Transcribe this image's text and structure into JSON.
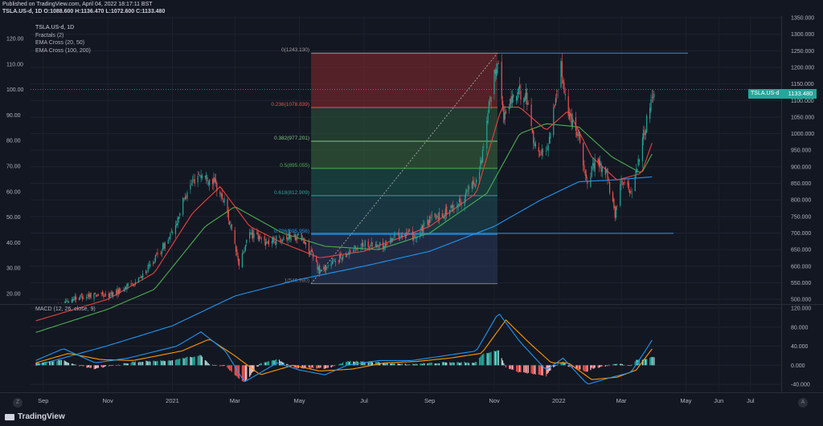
{
  "header": {
    "published": "Published on TradingView.com, April 04, 2022 18:17:11 BST",
    "ohlc": "TSLA.US-d, 1D  O:1088.600  H:1136.470  L:1072.600  C:1133.480"
  },
  "legend": {
    "symbol": "TSLA.US-d, 1D",
    "items": [
      "Fractals (2)",
      "EMA Cross (20, 50)",
      "EMA Cross (100, 200)"
    ]
  },
  "macd_legend": "MACD (12, 26, close, 9)",
  "price_tag": {
    "symbol": "TSLA.US-d",
    "value": "1133.480"
  },
  "brand": "TradingView",
  "axis_buttons": {
    "left": "Z",
    "right": "A"
  },
  "colors": {
    "background": "#131722",
    "up": "#26a69a",
    "down": "#ef5350",
    "ema_fast": "#e8433f",
    "ema_slow": "#4caf50",
    "ema_long": "#2196f3",
    "level_line": "#2962ff"
  },
  "chart_data": {
    "type": "candlestick",
    "symbol": "TSLA.US-d",
    "timeframe": "1D",
    "x_tick_labels": [
      "Sep",
      "Nov",
      "2021",
      "Mar",
      "May",
      "Jul",
      "Sep",
      "Nov",
      "2022",
      "Mar",
      "May",
      "Jun",
      "Jul"
    ],
    "y_right_ticks": [
      "1350.000",
      "1300.000",
      "1250.000",
      "1200.000",
      "1150.000",
      "1100.000",
      "1050.000",
      "1000.000",
      "950.000",
      "900.000",
      "850.000",
      "800.000",
      "750.000",
      "700.000",
      "650.000",
      "600.000",
      "550.000",
      "500.000"
    ],
    "y_left_ticks": [
      "120.00",
      "110.00",
      "100.00",
      "90.00",
      "80.00",
      "70.00",
      "60.00",
      "50.00",
      "40.00",
      "30.00",
      "20.00"
    ],
    "y_right_range": [
      488,
      1355
    ],
    "macd_ticks": [
      "120.000",
      "80.000",
      "40.000",
      "0.000",
      "-40.000"
    ],
    "macd_range": [
      -55,
      125
    ],
    "fib_levels": [
      {
        "ratio": 0,
        "label": "0(1243.130)",
        "price": 1243.13
      },
      {
        "ratio": 0.236,
        "label": "0.236(1078.839)",
        "price": 1078.839
      },
      {
        "ratio": 0.382,
        "label": "0.382(977.201)",
        "price": 977.201
      },
      {
        "ratio": 0.5,
        "label": "0.5(895.055)",
        "price": 895.055
      },
      {
        "ratio": 0.618,
        "label": "0.618(812.909)",
        "price": 812.909
      },
      {
        "ratio": 0.786,
        "label": "0.786(695.956)",
        "price": 695.956
      },
      {
        "ratio": 1,
        "label": "1(546.980)",
        "price": 546.98
      }
    ],
    "horizontal_lines": [
      1243.13,
      699.0
    ],
    "last_close": 1133.48,
    "close_path": [
      [
        "2020-08-25",
        430
      ],
      [
        "2020-09-01",
        455
      ],
      [
        "2020-09-15",
        480
      ],
      [
        "2020-10-01",
        505
      ],
      [
        "2020-10-20",
        515
      ],
      [
        "2020-11-01",
        510
      ],
      [
        "2020-11-20",
        540
      ],
      [
        "2020-12-01",
        560
      ],
      [
        "2020-12-15",
        620
      ],
      [
        "2021-01-01",
        700
      ],
      [
        "2021-01-15",
        830
      ],
      [
        "2021-01-26",
        880
      ],
      [
        "2021-02-08",
        860
      ],
      [
        "2021-02-20",
        790
      ],
      [
        "2021-03-05",
        600
      ],
      [
        "2021-03-15",
        700
      ],
      [
        "2021-04-01",
        670
      ],
      [
        "2021-04-15",
        690
      ],
      [
        "2021-05-01",
        690
      ],
      [
        "2021-05-12",
        640
      ],
      [
        "2021-05-20",
        585
      ],
      [
        "2021-06-01",
        610
      ],
      [
        "2021-06-15",
        640
      ],
      [
        "2021-07-01",
        670
      ],
      [
        "2021-07-20",
        660
      ],
      [
        "2021-08-01",
        700
      ],
      [
        "2021-08-20",
        690
      ],
      [
        "2021-09-01",
        740
      ],
      [
        "2021-09-20",
        770
      ],
      [
        "2021-10-01",
        800
      ],
      [
        "2021-10-15",
        860
      ],
      [
        "2021-10-22",
        950
      ],
      [
        "2021-10-27",
        1080
      ],
      [
        "2021-11-04",
        1230
      ],
      [
        "2021-11-10",
        1050
      ],
      [
        "2021-11-20",
        1120
      ],
      [
        "2021-12-01",
        1120
      ],
      [
        "2021-12-10",
        950
      ],
      [
        "2021-12-20",
        940
      ],
      [
        "2022-01-03",
        1200
      ],
      [
        "2022-01-10",
        1060
      ],
      [
        "2022-01-20",
        1000
      ],
      [
        "2022-01-27",
        850
      ],
      [
        "2022-02-05",
        920
      ],
      [
        "2022-02-15",
        880
      ],
      [
        "2022-02-23",
        750
      ],
      [
        "2022-03-01",
        870
      ],
      [
        "2022-03-10",
        820
      ],
      [
        "2022-03-17",
        920
      ],
      [
        "2022-03-23",
        1010
      ],
      [
        "2022-03-28",
        1090
      ],
      [
        "2022-04-01",
        1133
      ]
    ],
    "ema_20": [
      [
        "2020-08-25",
        435
      ],
      [
        "2020-11-01",
        500
      ],
      [
        "2020-12-15",
        580
      ],
      [
        "2021-01-20",
        760
      ],
      [
        "2021-02-15",
        840
      ],
      [
        "2021-03-15",
        720
      ],
      [
        "2021-04-15",
        670
      ],
      [
        "2021-05-20",
        625
      ],
      [
        "2021-07-01",
        645
      ],
      [
        "2021-09-01",
        720
      ],
      [
        "2021-10-15",
        820
      ],
      [
        "2021-11-08",
        1080
      ],
      [
        "2021-11-25",
        1080
      ],
      [
        "2021-12-20",
        1010
      ],
      [
        "2022-01-10",
        1070
      ],
      [
        "2022-02-01",
        930
      ],
      [
        "2022-02-25",
        860
      ],
      [
        "2022-03-20",
        880
      ],
      [
        "2022-04-01",
        990
      ]
    ],
    "ema_50": [
      [
        "2020-08-25",
        400
      ],
      [
        "2020-11-01",
        470
      ],
      [
        "2020-12-15",
        530
      ],
      [
        "2021-02-01",
        720
      ],
      [
        "2021-03-01",
        780
      ],
      [
        "2021-04-15",
        700
      ],
      [
        "2021-05-25",
        660
      ],
      [
        "2021-07-15",
        650
      ],
      [
        "2021-09-01",
        700
      ],
      [
        "2021-10-25",
        820
      ],
      [
        "2021-11-25",
        1000
      ],
      [
        "2021-12-20",
        1030
      ],
      [
        "2022-01-20",
        1020
      ],
      [
        "2022-02-20",
        930
      ],
      [
        "2022-03-20",
        880
      ],
      [
        "2022-04-01",
        950
      ]
    ],
    "ema_200": [
      [
        "2020-08-25",
        300
      ],
      [
        "2020-11-01",
        360
      ],
      [
        "2021-01-01",
        420
      ],
      [
        "2021-03-01",
        510
      ],
      [
        "2021-05-01",
        560
      ],
      [
        "2021-07-01",
        600
      ],
      [
        "2021-09-01",
        645
      ],
      [
        "2021-11-01",
        720
      ],
      [
        "2021-12-15",
        800
      ],
      [
        "2022-01-20",
        855
      ],
      [
        "2022-02-20",
        860
      ],
      [
        "2022-04-01",
        870
      ]
    ],
    "macd_line": [
      [
        "2020-08-25",
        10
      ],
      [
        "2020-09-20",
        35
      ],
      [
        "2020-10-20",
        5
      ],
      [
        "2020-11-20",
        15
      ],
      [
        "2021-01-05",
        40
      ],
      [
        "2021-01-28",
        70
      ],
      [
        "2021-02-20",
        30
      ],
      [
        "2021-03-10",
        -35
      ],
      [
        "2021-04-10",
        5
      ],
      [
        "2021-05-01",
        -10
      ],
      [
        "2021-05-25",
        -20
      ],
      [
        "2021-06-15",
        0
      ],
      [
        "2021-07-15",
        10
      ],
      [
        "2021-08-15",
        10
      ],
      [
        "2021-09-15",
        20
      ],
      [
        "2021-10-15",
        30
      ],
      [
        "2021-11-05",
        110
      ],
      [
        "2021-11-25",
        50
      ],
      [
        "2021-12-20",
        -10
      ],
      [
        "2022-01-05",
        15
      ],
      [
        "2022-01-28",
        -40
      ],
      [
        "2022-02-20",
        -25
      ],
      [
        "2022-03-10",
        -15
      ],
      [
        "2022-03-25",
        35
      ],
      [
        "2022-04-01",
        60
      ]
    ],
    "signal_line": [
      [
        "2020-08-25",
        5
      ],
      [
        "2020-09-25",
        25
      ],
      [
        "2020-10-25",
        12
      ],
      [
        "2020-11-25",
        10
      ],
      [
        "2021-01-10",
        30
      ],
      [
        "2021-02-05",
        55
      ],
      [
        "2021-03-01",
        20
      ],
      [
        "2021-03-25",
        -20
      ],
      [
        "2021-04-25",
        0
      ],
      [
        "2021-05-20",
        -12
      ],
      [
        "2021-06-20",
        -8
      ],
      [
        "2021-07-20",
        5
      ],
      [
        "2021-08-20",
        8
      ],
      [
        "2021-09-20",
        15
      ],
      [
        "2021-10-20",
        25
      ],
      [
        "2021-11-12",
        95
      ],
      [
        "2021-12-05",
        45
      ],
      [
        "2021-12-25",
        5
      ],
      [
        "2022-01-10",
        5
      ],
      [
        "2022-02-01",
        -30
      ],
      [
        "2022-02-25",
        -25
      ],
      [
        "2022-03-15",
        -10
      ],
      [
        "2022-04-01",
        40
      ]
    ]
  }
}
